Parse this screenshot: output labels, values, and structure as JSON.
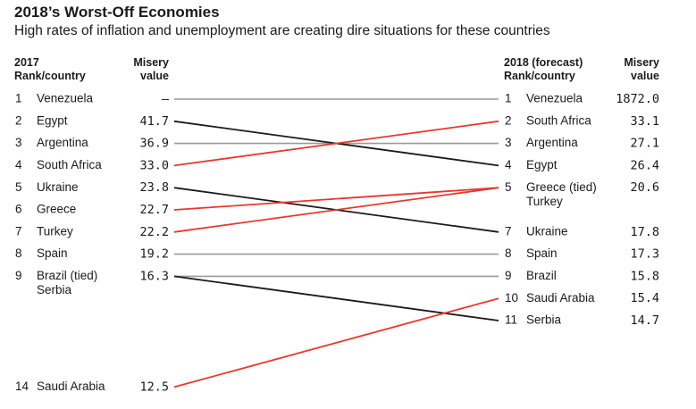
{
  "header": {
    "title": "2018’s Worst-Off Economies",
    "subtitle": "High rates of inflation and unemployment are creating dire situations for these countries"
  },
  "columns": {
    "left_rank": [
      "2017",
      "Rank/country"
    ],
    "left_value": [
      "Misery",
      "value"
    ],
    "right_rank": [
      "2018 (forecast)",
      "Rank/country"
    ],
    "right_value": [
      "Misery",
      "value"
    ]
  },
  "chart_data": {
    "type": "slope",
    "title": "2018’s Worst-Off Economies",
    "colors": {
      "worse": "#e8372c",
      "better": "#1a1a1a",
      "same": "#9a9a9a"
    },
    "left": [
      {
        "rank": "1",
        "country": "Venezuela",
        "value": "–"
      },
      {
        "rank": "2",
        "country": "Egypt",
        "value": "41.7"
      },
      {
        "rank": "3",
        "country": "Argentina",
        "value": "36.9"
      },
      {
        "rank": "4",
        "country": "South Africa",
        "value": "33.0"
      },
      {
        "rank": "5",
        "country": "Ukraine",
        "value": "23.8"
      },
      {
        "rank": "6",
        "country": "Greece",
        "value": "22.7"
      },
      {
        "rank": "7",
        "country": "Turkey",
        "value": "22.2"
      },
      {
        "rank": "8",
        "country": "Spain",
        "value": "19.2"
      },
      {
        "rank": "9",
        "country": "Brazil (tied)",
        "country2": "Serbia",
        "value": "16.3"
      },
      {
        "rank": "14",
        "country": "Saudi Arabia",
        "value": "12.5"
      }
    ],
    "right": [
      {
        "rank": "1",
        "country": "Venezuela",
        "value": "1872.0"
      },
      {
        "rank": "2",
        "country": "South Africa",
        "value": "33.1"
      },
      {
        "rank": "3",
        "country": "Argentina",
        "value": "27.1"
      },
      {
        "rank": "4",
        "country": "Egypt",
        "value": "26.4"
      },
      {
        "rank": "5",
        "country": "Greece (tied)",
        "country2": "Turkey",
        "value": "20.6"
      },
      {
        "rank": "7",
        "country": "Ukraine",
        "value": "17.8"
      },
      {
        "rank": "8",
        "country": "Spain",
        "value": "17.3"
      },
      {
        "rank": "9",
        "country": "Brazil",
        "value": "15.8"
      },
      {
        "rank": "10",
        "country": "Saudi Arabia",
        "value": "15.4"
      },
      {
        "rank": "11",
        "country": "Serbia",
        "value": "14.7"
      }
    ],
    "links": [
      {
        "country": "Venezuela",
        "from_rank": "1",
        "to_rank": "1",
        "trend": "same"
      },
      {
        "country": "Egypt",
        "from_rank": "2",
        "to_rank": "4",
        "trend": "better"
      },
      {
        "country": "Argentina",
        "from_rank": "3",
        "to_rank": "3",
        "trend": "same"
      },
      {
        "country": "South Africa",
        "from_rank": "4",
        "to_rank": "2",
        "trend": "worse"
      },
      {
        "country": "Ukraine",
        "from_rank": "5",
        "to_rank": "7",
        "trend": "better"
      },
      {
        "country": "Greece",
        "from_rank": "6",
        "to_rank": "5",
        "trend": "worse"
      },
      {
        "country": "Turkey",
        "from_rank": "7",
        "to_rank": "5",
        "trend": "worse"
      },
      {
        "country": "Spain",
        "from_rank": "8",
        "to_rank": "8",
        "trend": "same"
      },
      {
        "country": "Brazil",
        "from_rank": "9",
        "to_rank": "9",
        "trend": "same"
      },
      {
        "country": "Serbia",
        "from_rank": "9",
        "to_rank": "11",
        "trend": "better"
      },
      {
        "country": "Saudi Arabia",
        "from_rank": "14",
        "to_rank": "10",
        "trend": "worse"
      }
    ]
  }
}
